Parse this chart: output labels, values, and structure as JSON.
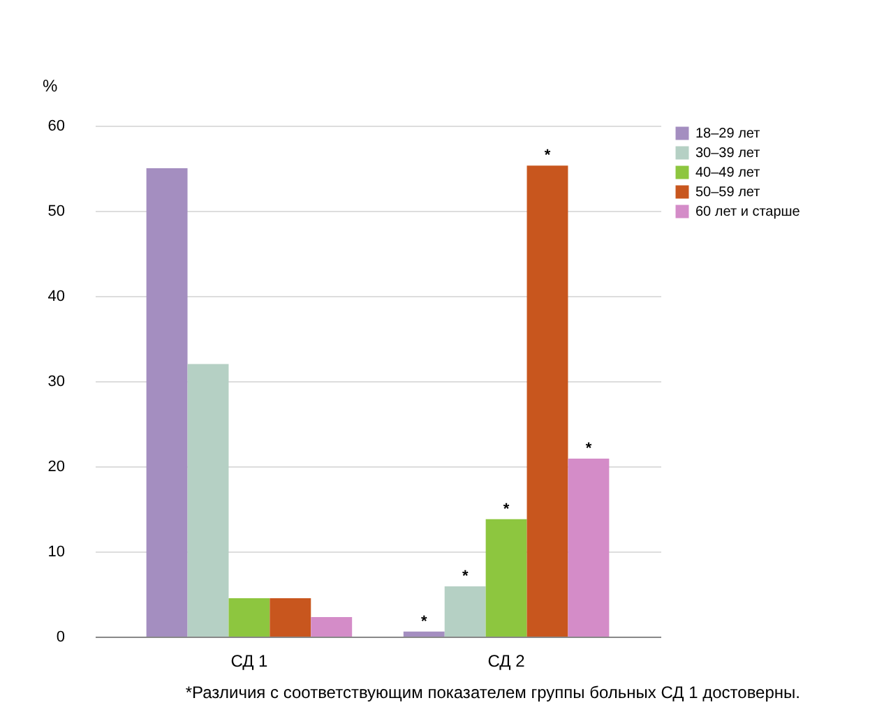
{
  "chart_data": {
    "type": "bar",
    "ylabel": "%",
    "categories": [
      "СД 1",
      "СД 2"
    ],
    "series": [
      {
        "name": "18–29 лет",
        "color": "#a48ec0",
        "values": [
          55,
          0.6
        ],
        "value_labels": [
          null,
          "*"
        ]
      },
      {
        "name": "30–39 лет",
        "color": "#b5d0c4",
        "values": [
          32,
          5.9
        ],
        "value_labels": [
          null,
          "*"
        ]
      },
      {
        "name": "40–49 лет",
        "color": "#8dc63f",
        "values": [
          4.5,
          13.8
        ],
        "value_labels": [
          null,
          "*"
        ]
      },
      {
        "name": "50–59 лет",
        "color": "#c8561e",
        "values": [
          4.5,
          55.3
        ],
        "value_labels": [
          null,
          "*"
        ]
      },
      {
        "name": "60 лет и старше",
        "color": "#d48cc8",
        "values": [
          2.3,
          20.9
        ],
        "value_labels": [
          null,
          "*"
        ]
      }
    ],
    "ylim": [
      0,
      60
    ],
    "yticks": [
      0,
      10,
      20,
      30,
      40,
      50,
      60
    ],
    "grid": "y",
    "legend": "top right",
    "annotations": [
      "*Различия с соответствующим показателем группы больных СД 1 достоверны."
    ]
  }
}
